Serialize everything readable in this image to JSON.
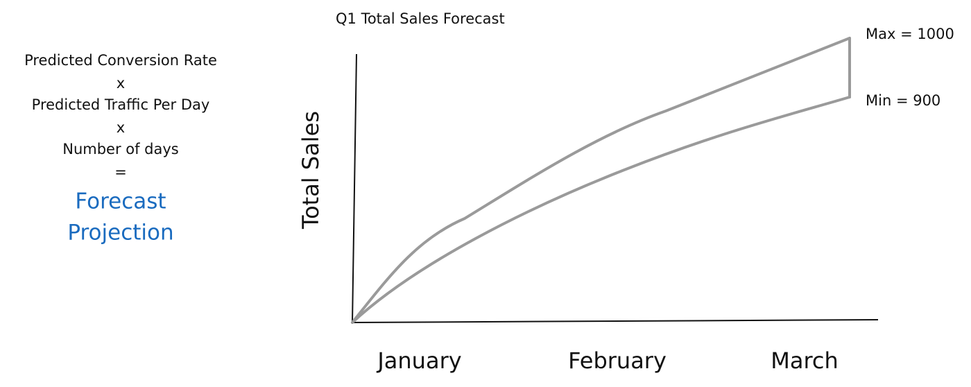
{
  "formula": {
    "lines": [
      "Predicted Conversion Rate",
      "x",
      "Predicted Traffic Per Day",
      "x",
      "Number of days",
      "="
    ],
    "result": [
      "Forecast",
      "Projection"
    ]
  },
  "chart": {
    "title": "Q1 Total Sales Forecast",
    "y_axis_label": "Total Sales",
    "months": [
      "January",
      "February",
      "March"
    ],
    "max_label": "Max = 1000",
    "min_label": "Min = 900"
  }
}
